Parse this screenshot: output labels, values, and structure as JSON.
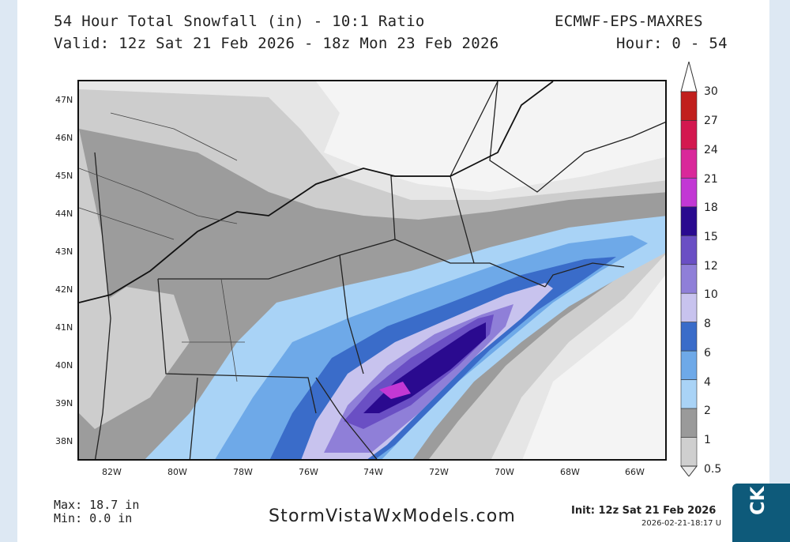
{
  "header": {
    "title": "54 Hour Total Snowfall (in) - 10:1 Ratio",
    "model": "ECMWF-EPS-MAXRES",
    "valid": "Valid: 12z Sat 21 Feb 2026 - 18z Mon 23 Feb 2026",
    "hours": "Hour: 0 - 54"
  },
  "lat_labels": [
    "47N",
    "46N",
    "45N",
    "44N",
    "43N",
    "42N",
    "41N",
    "40N",
    "39N",
    "38N"
  ],
  "lon_labels": [
    "82W",
    "80W",
    "78W",
    "76W",
    "74W",
    "72W",
    "70W",
    "68W",
    "66W"
  ],
  "colorbar": {
    "levels": [
      "0.5",
      "1",
      "2",
      "4",
      "6",
      "8",
      "10",
      "12",
      "15",
      "18",
      "21",
      "24",
      "27",
      "30"
    ],
    "colors": [
      "#ebebeb",
      "#cfcfcf",
      "#9a9a9a",
      "#a9d3f6",
      "#6ea9e8",
      "#3a6cc9",
      "#c8c3ee",
      "#8f7fd8",
      "#6a4fc4",
      "#2a0a8f",
      "#c238d4",
      "#d9289a",
      "#d3184f",
      "#c1201d"
    ]
  },
  "stats": {
    "max": "Max: 18.7 in",
    "min": "Min: 0.0 in"
  },
  "footer": {
    "site": "StormVistaWxModels.com",
    "init": "Init: 12z Sat 21 Feb 2026",
    "stamp": "2026-02-21-18:17 U"
  },
  "side_tab": {
    "label": "CK"
  }
}
